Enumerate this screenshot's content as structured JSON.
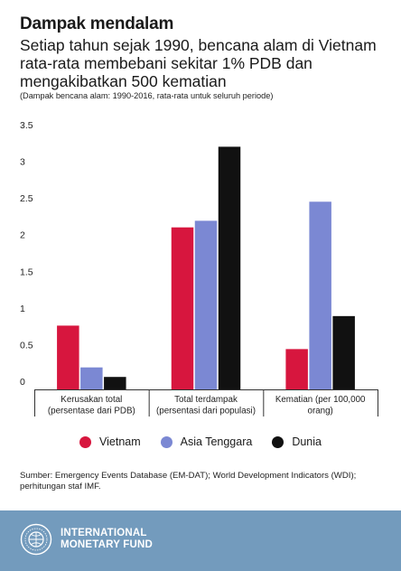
{
  "header": {
    "title": "Dampak mendalam",
    "subtitle": "Setiap tahun sejak 1990, bencana alam di Vietnam rata-rata membebani sekitar 1% PDB dan mengakibatkan 500 kematian",
    "note": "(Dampak bencana alam: 1990-2016, rata-rata untuk seluruh periode)"
  },
  "chart_data": {
    "type": "bar",
    "categories": [
      [
        "Kerusakan total",
        "(persentase dari PDB)"
      ],
      [
        "Total terdampak",
        "(persentasi dari populasi)"
      ],
      [
        "Kematian (per 100,000",
        "orang)"
      ]
    ],
    "series": [
      {
        "name": "Vietnam",
        "color": "#d7163e",
        "values": [
          0.87,
          2.21,
          0.55
        ]
      },
      {
        "name": "Asia Tenggara",
        "color": "#7b88d3",
        "values": [
          0.3,
          2.3,
          2.56
        ]
      },
      {
        "name": "Dunia",
        "color": "#111111",
        "values": [
          0.17,
          3.31,
          1.0
        ]
      }
    ],
    "yticks": [
      "3.5",
      "3",
      "2.5",
      "2",
      "1.5",
      "1",
      "0.5",
      "0"
    ],
    "ylim": [
      0,
      3.5
    ],
    "grid": false,
    "legend_position": "bottom"
  },
  "source": "Sumber: Emergency Events Database (EM-DAT); World Development Indicators (WDI); perhitungan staf IMF.",
  "footer": {
    "org_line1": "INTERNATIONAL",
    "org_line2": "MONETARY FUND",
    "background": "#739bbd"
  }
}
